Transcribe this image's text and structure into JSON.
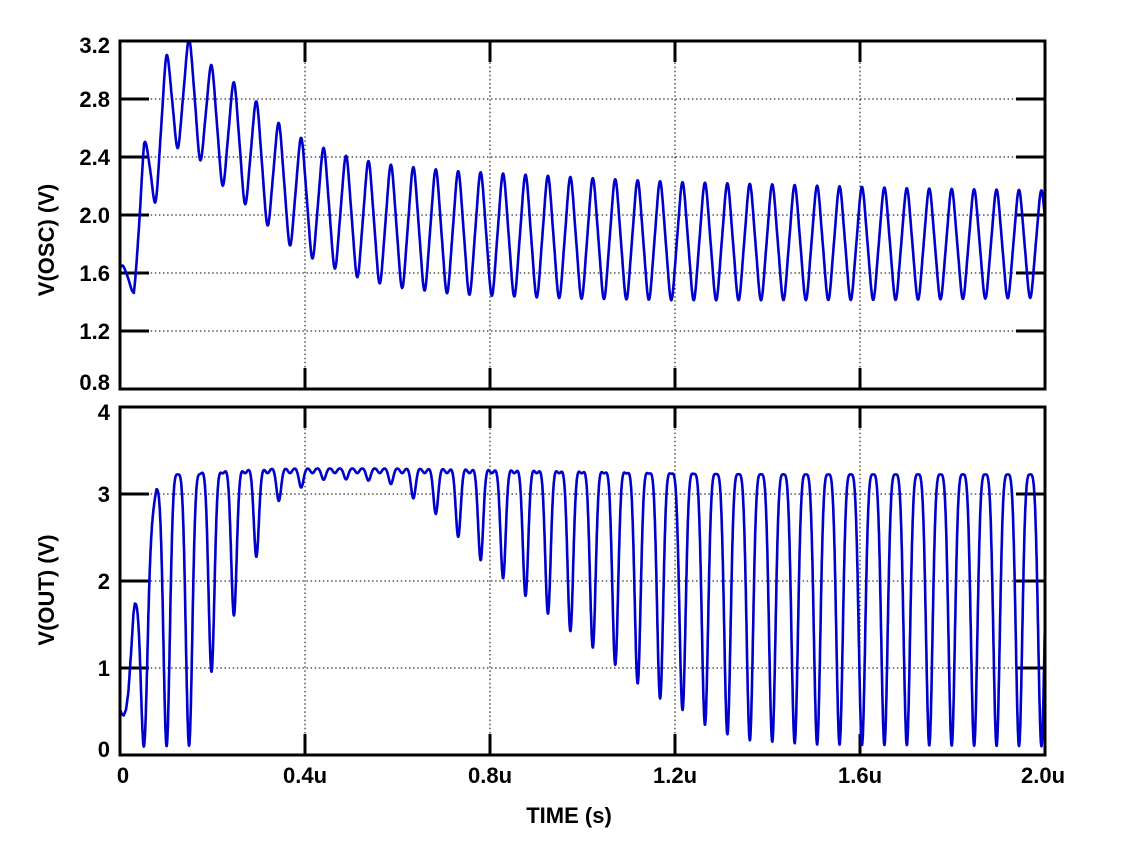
{
  "window": {
    "background": "#ffffff",
    "grid_color": "#000000",
    "frame_color": "#000000"
  },
  "chart_data": {
    "type": "line",
    "title": "",
    "legend": null,
    "grid": "dotted",
    "x_axis": {
      "label": "TIME  (s)",
      "min_us": 0,
      "max_us": 2,
      "tick_values_us": [
        0,
        0.4,
        0.8,
        1.2,
        1.6,
        2.0
      ],
      "tick_labels": [
        "0",
        "0.4u",
        "0.8u",
        "1.2u",
        "1.6u",
        "2.0u"
      ]
    },
    "panels": [
      {
        "name": "V(OSC)",
        "ylabel": "V(OSC)  (V)",
        "ymin": 0.8,
        "ymax": 3.2,
        "ytick_values": [
          3.2,
          2.8,
          2.4,
          2.0,
          1.6,
          1.2,
          0.8
        ],
        "tick_labels": [
          "3.2",
          "2.8",
          "2.4",
          "2.0",
          "1.6",
          "1.2",
          "0.8"
        ],
        "trace_color": "#0000CC",
        "waveform": {
          "kind": "damped_sine",
          "period_us": 0.0485,
          "trough_ref_us": 0.028,
          "third_harmonic": 0.06,
          "clip": [
            0.73,
            3.205
          ],
          "center_keyframes": [
            [
              0,
              1.58
            ],
            [
              0.03,
              1.58
            ],
            [
              0.052,
              2.22
            ],
            [
              0.08,
              2.47
            ],
            [
              0.1,
              2.74
            ],
            [
              0.13,
              2.85
            ],
            [
              0.16,
              2.82
            ],
            [
              0.2,
              2.64
            ],
            [
              0.25,
              2.52
            ],
            [
              0.3,
              2.38
            ],
            [
              0.35,
              2.22
            ],
            [
              0.4,
              2.12
            ],
            [
              0.45,
              2.05
            ],
            [
              0.5,
              1.99
            ],
            [
              0.55,
              1.95
            ],
            [
              0.6,
              1.92
            ],
            [
              0.66,
              1.9
            ],
            [
              0.72,
              1.88
            ],
            [
              0.85,
              1.86
            ],
            [
              1.0,
              1.84
            ],
            [
              1.2,
              1.82
            ],
            [
              1.45,
              1.81
            ],
            [
              1.7,
              1.8
            ],
            [
              2.0,
              1.8
            ]
          ],
          "amplitude_keyframes": [
            [
              0,
              0.065
            ],
            [
              0.028,
              0.11
            ],
            [
              0.052,
              0.27
            ],
            [
              0.076,
              0.35
            ],
            [
              0.1,
              0.36
            ],
            [
              0.15,
              0.38
            ],
            [
              0.22,
              0.385
            ],
            [
              0.3,
              0.39
            ],
            [
              0.45,
              0.4
            ],
            [
              0.6,
              0.42
            ],
            [
              0.75,
              0.425
            ],
            [
              0.95,
              0.42
            ],
            [
              1.15,
              0.41
            ],
            [
              1.4,
              0.4
            ],
            [
              1.7,
              0.385
            ],
            [
              2.0,
              0.37
            ]
          ]
        }
      },
      {
        "name": "V(OUT)",
        "ylabel": "V(OUT)  (V)",
        "ymin": 0,
        "ymax": 4,
        "ytick_values": [
          4,
          3,
          2,
          1,
          0
        ],
        "tick_labels": [
          "4",
          "3",
          "2",
          "1",
          "0"
        ],
        "trace_color": "#0000CC",
        "waveform": {
          "kind": "clipped_pulse_with_notches",
          "period_us": 0.0485,
          "first_dip_us": 0.0523,
          "dip_count": 41,
          "clip_high": 3.35,
          "clip_low": 0.07,
          "top_notch_depth": 0.06,
          "top_notch_width": 0.13,
          "notch_width_base": 0.28,
          "notch_width_scale": 0.13,
          "start_keypoints": [
            [
              0,
              0.52
            ],
            [
              0.004,
              0.47
            ],
            [
              0.008,
              0.455
            ],
            [
              0.013,
              0.52
            ],
            [
              0.018,
              0.72
            ],
            [
              0.024,
              1.18
            ],
            [
              0.029,
              1.62
            ],
            [
              0.032,
              1.74
            ],
            [
              0.034,
              1.72
            ]
          ],
          "high_keyframes": [
            [
              0.034,
              1.8
            ],
            [
              0.05,
              2.1
            ],
            [
              0.065,
              2.6
            ],
            [
              0.079,
              3.08
            ],
            [
              0.094,
              3.24
            ],
            [
              0.115,
              3.3
            ],
            [
              2.0,
              3.3
            ]
          ],
          "dip_keyframes": [
            [
              0.052,
              0.11
            ],
            [
              0.101,
              0.1
            ],
            [
              0.149,
              0.1
            ],
            [
              0.198,
              0.96
            ],
            [
              0.246,
              1.6
            ],
            [
              0.295,
              2.28
            ],
            [
              0.343,
              2.92
            ],
            [
              0.4,
              3.1
            ],
            [
              0.45,
              3.18
            ],
            [
              0.55,
              3.15
            ],
            [
              0.6,
              3.1
            ],
            [
              0.655,
              2.86
            ],
            [
              0.705,
              2.7
            ],
            [
              0.75,
              2.37
            ],
            [
              0.8,
              2.15
            ],
            [
              0.855,
              1.92
            ],
            [
              0.905,
              1.71
            ],
            [
              0.955,
              1.5
            ],
            [
              1.005,
              1.3
            ],
            [
              1.055,
              1.11
            ],
            [
              1.105,
              0.88
            ],
            [
              1.155,
              0.68
            ],
            [
              1.205,
              0.56
            ],
            [
              1.255,
              0.37
            ],
            [
              1.305,
              0.25
            ],
            [
              1.36,
              0.17
            ],
            [
              1.5,
              0.12
            ],
            [
              2.0,
              0.1
            ]
          ]
        }
      }
    ]
  }
}
